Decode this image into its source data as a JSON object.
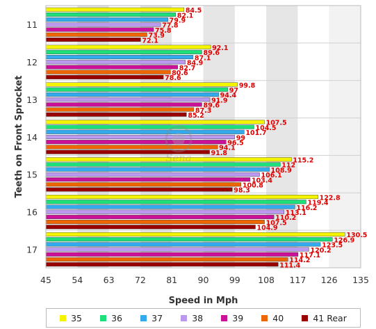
{
  "chart_data": {
    "type": "bar",
    "orientation": "horizontal",
    "title": "",
    "xlabel": "Speed in Mph",
    "ylabel": "Teeth on Front Sprocket",
    "xlim": [
      45,
      135
    ],
    "xticks": [
      45,
      54,
      63,
      72,
      81,
      90,
      99,
      108,
      117,
      126,
      135
    ],
    "grid": "vertical-bands",
    "legend_position": "bottom",
    "categories": [
      "11",
      "12",
      "13",
      "14",
      "15",
      "16",
      "17"
    ],
    "series": [
      {
        "name": "35",
        "color": "#f4f400",
        "values": [
          84.5,
          92.1,
          99.8,
          107.5,
          115.2,
          122.8,
          130.5
        ]
      },
      {
        "name": "36",
        "color": "#1ee07a",
        "values": [
          82.1,
          89.6,
          97.0,
          104.5,
          112.0,
          119.4,
          126.9
        ]
      },
      {
        "name": "37",
        "color": "#33aaee",
        "values": [
          79.9,
          87.1,
          94.4,
          101.7,
          108.9,
          116.2,
          123.5
        ]
      },
      {
        "name": "38",
        "color": "#bb99ee",
        "values": [
          77.8,
          84.9,
          91.9,
          99.0,
          106.1,
          113.1,
          120.2
        ]
      },
      {
        "name": "39",
        "color": "#cc1199",
        "values": [
          75.8,
          82.7,
          89.6,
          96.5,
          103.4,
          110.2,
          117.1
        ]
      },
      {
        "name": "40",
        "color": "#ee6600",
        "values": [
          73.9,
          80.6,
          87.3,
          94.1,
          100.8,
          107.5,
          114.2
        ]
      },
      {
        "name": "41 Rear",
        "color": "#990000",
        "values": [
          72.1,
          78.6,
          85.2,
          91.8,
          98.3,
          104.9,
          111.4
        ]
      }
    ]
  },
  "watermark_text": "Sena"
}
